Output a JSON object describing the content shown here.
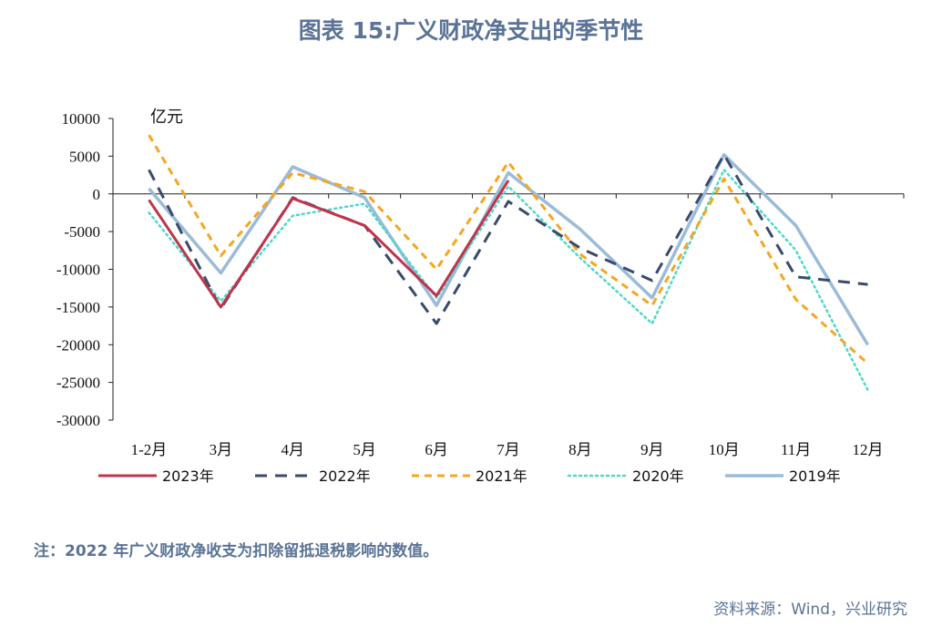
{
  "title": "图表 15:广义财政净支出的季节性",
  "note": "注：2022 年广义财政净收支为扣除留抵退税影响的数值。",
  "source": "资料来源：Wind，兴业研究",
  "chart_data": {
    "type": "line",
    "unit_label": "亿元",
    "categories": [
      "1-2月",
      "3月",
      "4月",
      "5月",
      "6月",
      "7月",
      "8月",
      "9月",
      "10月",
      "11月",
      "12月"
    ],
    "ylim": [
      -30000,
      10000
    ],
    "yticks": [
      10000,
      5000,
      0,
      -5000,
      -10000,
      -15000,
      -20000,
      -25000,
      -30000
    ],
    "legend_position": "bottom",
    "series": [
      {
        "name": "2023年",
        "color": "#c0344b",
        "style": "solid",
        "values": [
          -800,
          -15000,
          -600,
          -4200,
          -13500,
          1800,
          null,
          null,
          null,
          null,
          null
        ]
      },
      {
        "name": "2022年",
        "color": "#3a4a6b",
        "style": "dashed",
        "values": [
          3200,
          -15200,
          -500,
          -4200,
          -17200,
          -1000,
          -7200,
          -11500,
          5200,
          -11000,
          -12000
        ]
      },
      {
        "name": "2021年",
        "color": "#f5a623",
        "style": "dashed-short",
        "values": [
          7800,
          -8200,
          2800,
          300,
          -10000,
          4200,
          -8000,
          -14800,
          2000,
          -14000,
          -22500
        ]
      },
      {
        "name": "2020年",
        "color": "#4ed8c8",
        "style": "dotted",
        "values": [
          -2500,
          -14200,
          -2900,
          -1300,
          -13800,
          1000,
          -8500,
          -17200,
          3200,
          -7500,
          -26000
        ]
      },
      {
        "name": "2019年",
        "color": "#9bbbd8",
        "style": "solid-thick",
        "values": [
          700,
          -10500,
          3600,
          -500,
          -14800,
          2800,
          -4700,
          -13800,
          5200,
          -4200,
          -20000
        ]
      }
    ]
  }
}
